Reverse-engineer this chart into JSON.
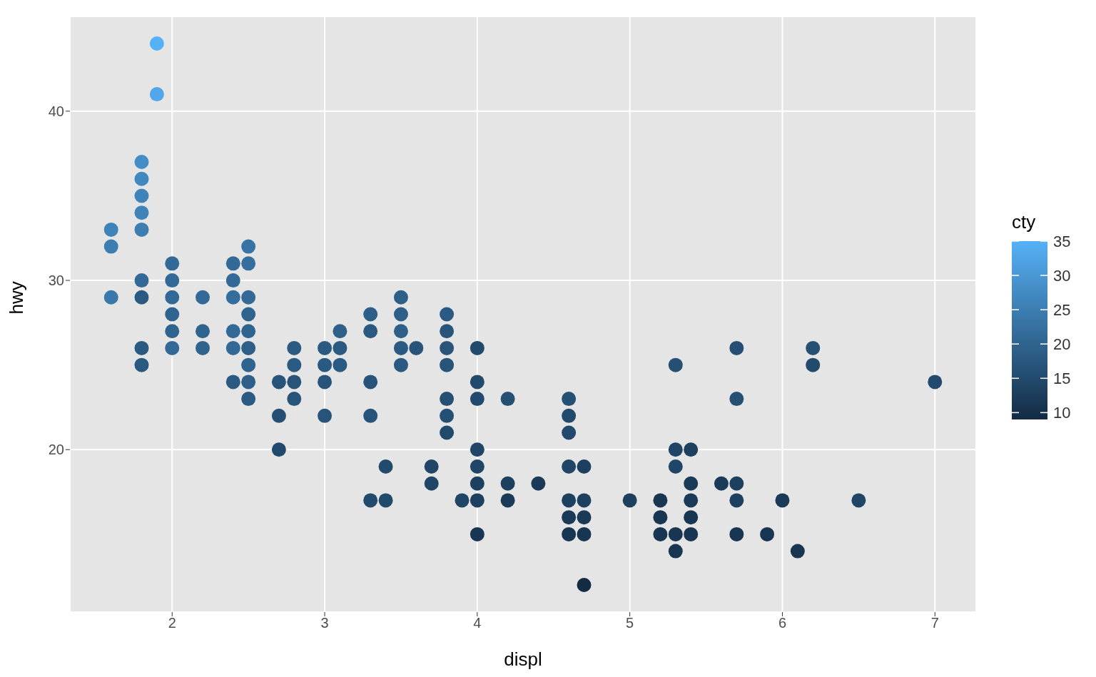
{
  "chart_data": {
    "type": "scatter",
    "xlabel": "displ",
    "ylabel": "hwy",
    "clabel": "cty",
    "xlim": [
      1.33,
      7.27
    ],
    "xticks": [
      2,
      3,
      4,
      5,
      6,
      7
    ],
    "ylim": [
      10.4,
      45.6
    ],
    "yticks": [
      20,
      30,
      40
    ],
    "grid": true,
    "marker": "circle",
    "clim": [
      9,
      35
    ],
    "cticks": [
      10,
      15,
      20,
      25,
      30,
      35
    ],
    "series": [
      {
        "x": [
          1.6,
          1.6,
          1.6,
          1.8,
          1.8,
          1.8,
          1.8,
          1.8,
          1.8,
          1.8,
          1.8,
          1.8,
          1.9,
          1.9,
          2.0,
          2.0,
          2.0,
          2.0,
          2.0,
          2.0,
          2.2,
          2.2,
          2.2,
          2.4,
          2.4,
          2.4,
          2.4,
          2.4,
          2.4,
          2.5,
          2.5,
          2.5,
          2.5,
          2.5,
          2.5,
          2.5,
          2.5,
          2.5,
          2.7,
          2.7,
          2.7,
          2.8,
          2.8,
          2.8,
          2.8,
          3.0,
          3.0,
          3.0,
          3.0,
          3.1,
          3.1,
          3.1,
          3.3,
          3.3,
          3.3,
          3.3,
          3.3,
          3.4,
          3.4,
          3.5,
          3.5,
          3.5,
          3.5,
          3.5,
          3.6,
          3.7,
          3.7,
          3.8,
          3.8,
          3.8,
          3.8,
          3.8,
          3.8,
          3.8,
          3.9,
          4.0,
          4.0,
          4.0,
          4.0,
          4.0,
          4.0,
          4.0,
          4.0,
          4.2,
          4.2,
          4.2,
          4.4,
          4.6,
          4.6,
          4.6,
          4.6,
          4.6,
          4.6,
          4.6,
          4.7,
          4.7,
          4.7,
          4.7,
          4.7,
          5.0,
          5.2,
          5.2,
          5.2,
          5.3,
          5.3,
          5.3,
          5.3,
          5.3,
          5.4,
          5.4,
          5.4,
          5.4,
          5.4,
          5.6,
          5.7,
          5.7,
          5.7,
          5.7,
          5.7,
          5.9,
          6.0,
          6.1,
          6.2,
          6.2,
          6.5,
          7.0
        ],
        "values": [
          33,
          32,
          29,
          37,
          36,
          35,
          34,
          33,
          30,
          29,
          26,
          25,
          44,
          41,
          31,
          30,
          29,
          28,
          27,
          26,
          29,
          27,
          26,
          31,
          30,
          29,
          27,
          26,
          24,
          32,
          31,
          29,
          28,
          27,
          26,
          25,
          24,
          23,
          24,
          22,
          20,
          26,
          25,
          24,
          23,
          26,
          25,
          24,
          22,
          27,
          26,
          25,
          28,
          27,
          24,
          22,
          17,
          19,
          17,
          29,
          28,
          27,
          26,
          25,
          26,
          19,
          18,
          28,
          27,
          26,
          25,
          23,
          22,
          21,
          17,
          26,
          24,
          23,
          20,
          19,
          18,
          17,
          15,
          23,
          18,
          17,
          18,
          23,
          22,
          21,
          19,
          17,
          16,
          15,
          19,
          17,
          16,
          15,
          12,
          17,
          17,
          16,
          15,
          25,
          20,
          19,
          15,
          14,
          20,
          18,
          17,
          16,
          15,
          18,
          26,
          23,
          18,
          17,
          15,
          15,
          17,
          14,
          26,
          25,
          17,
          24
        ],
        "cvalues": [
          26,
          25,
          24,
          28,
          27,
          26,
          26,
          25,
          21,
          18,
          18,
          18,
          35,
          33,
          21,
          21,
          21,
          20,
          20,
          21,
          21,
          20,
          20,
          21,
          21,
          22,
          21,
          21,
          18,
          23,
          22,
          21,
          20,
          20,
          19,
          20,
          19,
          18,
          17,
          16,
          15,
          18,
          18,
          17,
          17,
          18,
          18,
          17,
          17,
          19,
          18,
          18,
          19,
          18,
          17,
          17,
          15,
          15,
          15,
          19,
          19,
          19,
          18,
          18,
          17,
          14,
          14,
          18,
          17,
          17,
          17,
          16,
          16,
          15,
          14,
          15,
          15,
          15,
          14,
          14,
          13,
          13,
          11,
          16,
          13,
          12,
          12,
          16,
          15,
          15,
          14,
          13,
          12,
          11,
          13,
          13,
          12,
          11,
          9,
          13,
          11,
          11,
          11,
          16,
          14,
          14,
          11,
          11,
          13,
          12,
          12,
          11,
          11,
          12,
          16,
          16,
          13,
          13,
          11,
          11,
          12,
          11,
          16,
          15,
          14,
          15
        ]
      }
    ]
  }
}
